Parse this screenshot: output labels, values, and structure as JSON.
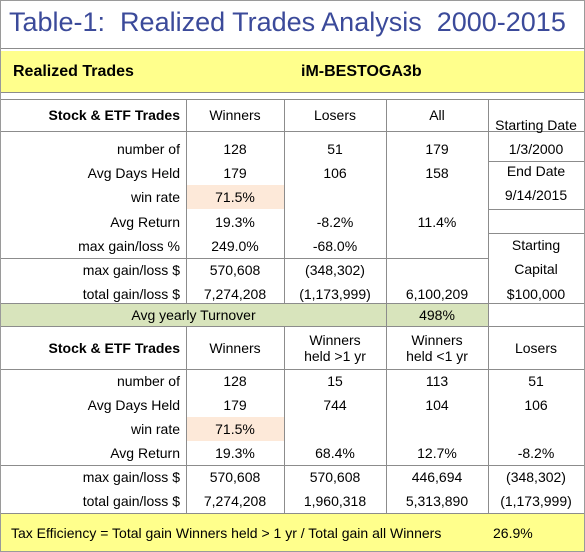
{
  "header": {
    "title": "Table-1:  Realized Trades Analysis  2000-2015"
  },
  "banner": {
    "label": "Realized Trades",
    "model": "iM-BESTOGA3b"
  },
  "table1": {
    "columns": [
      "Stock & ETF Trades",
      "Winners",
      "Losers",
      "All"
    ],
    "rows": [
      [
        "number of",
        "128",
        "51",
        "179"
      ],
      [
        "Avg Days Held",
        "179",
        "106",
        "158"
      ],
      [
        "win rate",
        "71.5%",
        null,
        null
      ],
      [
        "Avg Return",
        "19.3%",
        "-8.2%",
        "11.4%"
      ],
      [
        "max gain/loss %",
        "249.0%",
        "-68.0%",
        null
      ],
      [
        "max gain/loss $",
        "570,608",
        "(348,302)",
        null
      ],
      [
        "total gain/loss $",
        "7,274,208",
        "(1,173,999)",
        "6,100,209"
      ]
    ],
    "side": [
      "Starting Date",
      "1/3/2000",
      "End Date",
      "9/14/2015",
      "Starting",
      "Capital",
      "$100,000"
    ]
  },
  "turnover": {
    "label": "Avg yearly Turnover",
    "value": "498%"
  },
  "table2": {
    "columns": [
      "Stock & ETF Trades",
      "Winners",
      "Winners held >1 yr",
      "Winners held <1 yr",
      "Losers"
    ],
    "rows": [
      [
        "number of",
        "128",
        "15",
        "113",
        "51"
      ],
      [
        "Avg Days Held",
        "179",
        "744",
        "104",
        "106"
      ],
      [
        "win rate",
        "71.5%",
        null,
        null,
        null
      ],
      [
        "Avg Return",
        "19.3%",
        "68.4%",
        "12.7%",
        "-8.2%"
      ],
      [
        "max gain/loss $",
        "570,608",
        "570,608",
        "446,694",
        "(348,302)"
      ],
      [
        "total gain/loss $",
        "7,274,208",
        "1,960,318",
        "5,313,890",
        "(1,173,999)"
      ]
    ]
  },
  "footer": {
    "text": "Tax Efficiency = Total gain Winners held > 1 yr / Total gain all Winners",
    "value": "26.9%"
  }
}
